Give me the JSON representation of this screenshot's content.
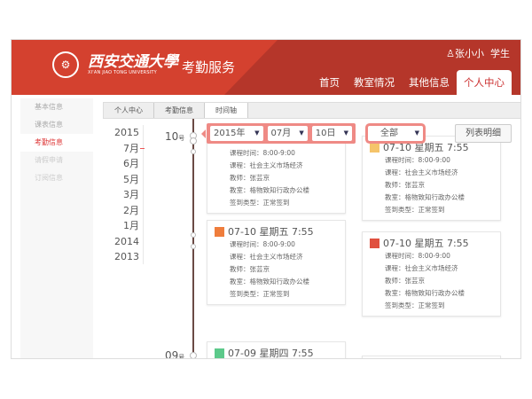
{
  "header": {
    "university_cn": "西安交通大學",
    "university_en": "XI'AN JIAO TONG UNIVERSITY",
    "app_title": "考勤服务",
    "user_name": "张小小",
    "user_role": "学生",
    "nav": [
      {
        "label": "首页"
      },
      {
        "label": "教室情况"
      },
      {
        "label": "其他信息"
      },
      {
        "label": "个人中心",
        "active": true
      }
    ]
  },
  "sidebar": {
    "items": [
      {
        "label": "基本信息"
      },
      {
        "label": "课表信息"
      },
      {
        "label": "考勤信息",
        "active": true
      },
      {
        "label": "请假申请"
      },
      {
        "label": "订阅信息"
      }
    ]
  },
  "breadcrumb": [
    "个人中心",
    "考勤信息",
    "时间轴"
  ],
  "years": [
    "2015",
    "7月",
    "6月",
    "5月",
    "3月",
    "2月",
    "1月",
    "2014",
    "2013"
  ],
  "filter": {
    "year": "2015年",
    "month": "07月",
    "day": "10日",
    "type": "全部"
  },
  "list_button": "列表明细",
  "days": {
    "d1": "10",
    "d2": "09",
    "suffix": "号"
  },
  "labels": {
    "time": "课程时间：",
    "course": "课程：",
    "teacher": "教师：",
    "room": "教室：",
    "type": "签到类型："
  },
  "cards": [
    {
      "title": "07-10 星期五 7:55",
      "time": "8:00-9:00",
      "course": "社会主义市场经济",
      "teacher": "张芸京",
      "room": "格物致知行政办公楼",
      "type": "正常签到",
      "color": "#f5c46a"
    },
    {
      "title": "07-10 星期五 7:55",
      "time": "8:00-9:00",
      "course": "社会主义市场经济",
      "teacher": "张芸京",
      "room": "格物致知行政办公楼",
      "type": "正常签到",
      "color": "#f5c46a"
    },
    {
      "title": "07-10 星期五 7:55",
      "time": "8:00-9:00",
      "course": "社会主义市场经济",
      "teacher": "张芸京",
      "room": "格物致知行政办公楼",
      "type": "正常签到",
      "color": "#ef7d3c"
    },
    {
      "title": "07-10 星期五 7:55",
      "time": "8:00-9:00",
      "course": "社会主义市场经济",
      "teacher": "张芸京",
      "room": "格物致知行政办公楼",
      "type": "正常签到",
      "color": "#e0503f"
    },
    {
      "title": "07-09 星期四 7:55",
      "color": "#5cc98a"
    }
  ]
}
